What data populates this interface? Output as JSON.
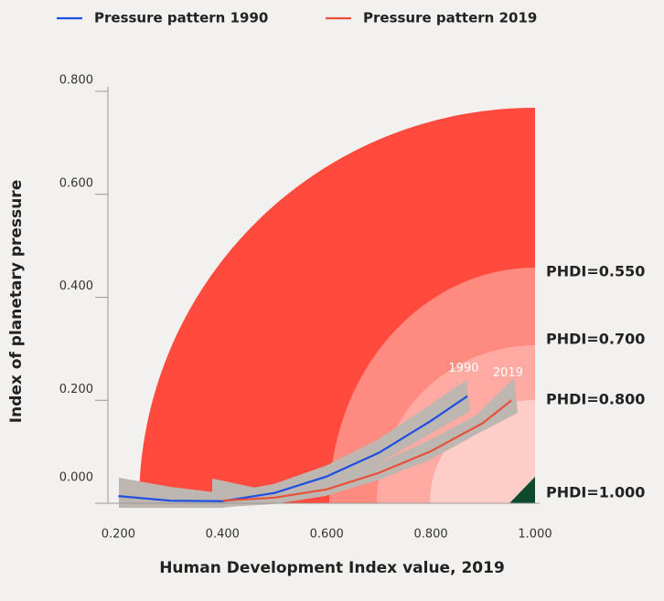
{
  "chart_data": {
    "type": "line",
    "x_label": "Human Development Index value, 2019",
    "y_label": "Index of planetary pressure",
    "xlim": [
      0.18,
      1.0
    ],
    "ylim": [
      0,
      0.8
    ],
    "xticks": [
      {
        "value": 0.2,
        "label": "0.200"
      },
      {
        "value": 0.4,
        "label": "0.400"
      },
      {
        "value": 0.6,
        "label": "0.600"
      },
      {
        "value": 0.8,
        "label": "0.800"
      },
      {
        "value": 1.0,
        "label": "1.000"
      }
    ],
    "yticks": [
      {
        "value": 0,
        "label": "0.000"
      },
      {
        "value": 0.2,
        "label": "0.200"
      },
      {
        "value": 0.4,
        "label": "0.400"
      },
      {
        "value": 0.6,
        "label": "0.600"
      },
      {
        "value": 0.8,
        "label": "0.800"
      }
    ],
    "series": [
      {
        "name": "Pressure pattern 1990",
        "color": "#1f4fe0",
        "label": "1990",
        "x": [
          0.2,
          0.3,
          0.4,
          0.5,
          0.6,
          0.7,
          0.8,
          0.87
        ],
        "values": [
          0.014,
          0.005,
          0.004,
          0.02,
          0.052,
          0.098,
          0.16,
          0.208
        ]
      },
      {
        "name": "Pressure pattern 2019",
        "color": "#e8503a",
        "label": "2019",
        "x": [
          0.4,
          0.5,
          0.6,
          0.7,
          0.8,
          0.9,
          0.955
        ],
        "values": [
          0.005,
          0.011,
          0.027,
          0.059,
          0.101,
          0.156,
          0.2
        ]
      }
    ],
    "phdi_labels": [
      "PHDI=0.550",
      "PHDI=0.700",
      "PHDI=0.800",
      "PHDI=1.000"
    ]
  }
}
